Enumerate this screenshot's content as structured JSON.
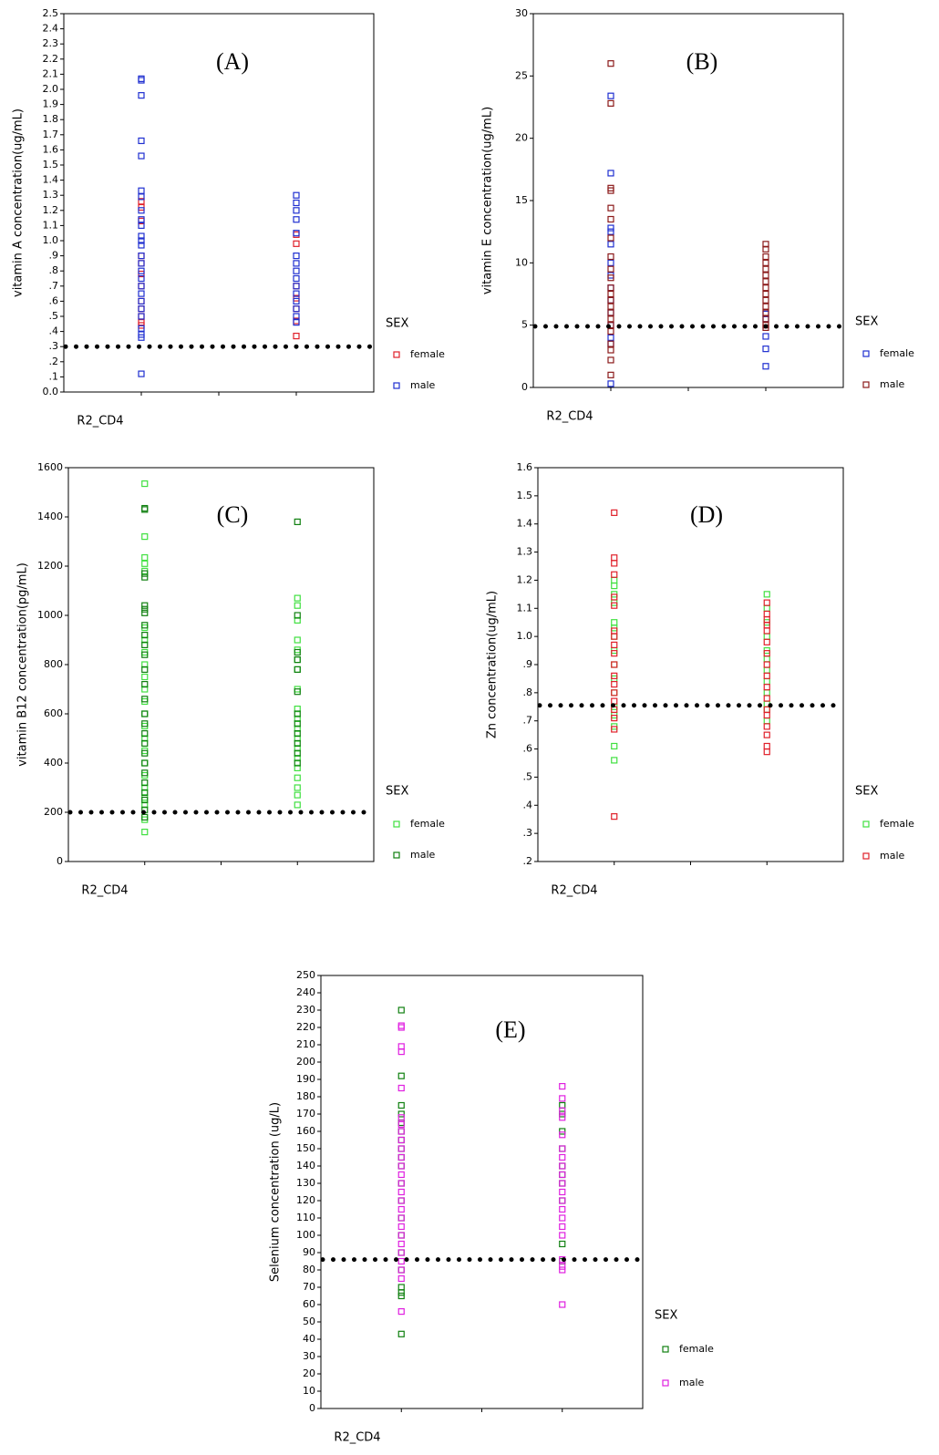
{
  "chart_data": [
    {
      "type": "scatter",
      "title": "(A)",
      "y_label": "vitamin A concentration(ug/mL)",
      "x_label": "R2_CD4",
      "legend_title": "SEX",
      "xlim": [
        0.5,
        2.5
      ],
      "xticks": [
        1,
        1.5,
        2
      ],
      "ylim": [
        0,
        2.5
      ],
      "yticks": [
        {
          "value": 0,
          "label": "0.0"
        },
        {
          "value": 0.1,
          "label": ".1"
        },
        {
          "value": 0.2,
          "label": ".2"
        },
        {
          "value": 0.3,
          "label": ".3"
        },
        {
          "value": 0.4,
          "label": ".4"
        },
        {
          "value": 0.5,
          "label": ".5"
        },
        {
          "value": 0.6,
          "label": ".6"
        },
        {
          "value": 0.7,
          "label": ".7"
        },
        {
          "value": 0.8,
          "label": ".8"
        },
        {
          "value": 0.9,
          "label": ".9"
        },
        {
          "value": 1,
          "label": "1.0"
        },
        1.1,
        1.2,
        1.3,
        1.4,
        1.5,
        1.6,
        1.7,
        1.8,
        1.9,
        {
          "value": 2,
          "label": "2.0"
        },
        2.1,
        2.2,
        2.3,
        2.4,
        2.5
      ],
      "reference_line": 0.3,
      "series": [
        {
          "name": "female",
          "color": "#e0202a",
          "x": [
            1,
            1,
            1,
            1,
            1,
            1,
            1,
            1,
            1,
            1,
            1,
            1,
            2,
            2,
            2,
            2,
            2,
            2,
            2
          ],
          "values": [
            1.26,
            1.22,
            1.13,
            0.9,
            0.85,
            0.78,
            0.7,
            0.6,
            0.55,
            0.5,
            0.46,
            0.44,
            1.04,
            0.98,
            0.7,
            0.62,
            0.55,
            0.47,
            0.37
          ]
        },
        {
          "name": "male",
          "color": "#1f2fd0",
          "x": [
            1,
            1,
            1,
            1,
            1,
            1,
            1,
            1,
            1,
            1,
            1,
            1,
            1,
            1,
            1,
            1,
            1,
            1,
            1,
            1,
            1,
            1,
            1,
            1,
            1,
            1,
            2,
            2,
            2,
            2,
            2,
            2,
            2,
            2,
            2,
            2,
            2,
            2,
            2,
            2,
            2
          ],
          "values": [
            2.07,
            2.06,
            1.96,
            1.66,
            1.56,
            1.33,
            1.29,
            1.2,
            1.14,
            1.1,
            1.03,
            1.0,
            0.97,
            0.9,
            0.85,
            0.8,
            0.75,
            0.7,
            0.65,
            0.6,
            0.55,
            0.5,
            0.42,
            0.38,
            0.36,
            0.12,
            1.3,
            1.25,
            1.2,
            1.14,
            1.05,
            0.9,
            0.85,
            0.8,
            0.75,
            0.7,
            0.65,
            0.6,
            0.55,
            0.5,
            0.46
          ]
        }
      ]
    },
    {
      "type": "scatter",
      "title": "(B)",
      "y_label": "vitamin E concentration(ug/mL)",
      "x_label": "R2_CD4",
      "legend_title": "SEX",
      "xlim": [
        0.5,
        2.5
      ],
      "xticks": [
        1,
        1.5,
        2
      ],
      "ylim": [
        0,
        30
      ],
      "yticks": [
        0,
        5,
        10,
        15,
        20,
        25,
        30
      ],
      "reference_line": 4.9,
      "series": [
        {
          "name": "female",
          "color": "#1f2fd0",
          "x": [
            1,
            1,
            1,
            1,
            1,
            1,
            1,
            1,
            1,
            1,
            1,
            1,
            1,
            1,
            2,
            2,
            2,
            2,
            2
          ],
          "values": [
            23.4,
            17.2,
            12.8,
            12.5,
            11.5,
            10,
            9,
            8,
            7,
            6,
            5,
            4,
            3.5,
            0.3,
            5.9,
            5.5,
            4.1,
            3.1,
            1.7
          ]
        },
        {
          "name": "male",
          "color": "#8b1a1a",
          "x": [
            1,
            1,
            1,
            1,
            1,
            1,
            1,
            1,
            1,
            1,
            1,
            1,
            1,
            1,
            1,
            1,
            1,
            1,
            1,
            1,
            1,
            1,
            2,
            2,
            2,
            2,
            2,
            2,
            2,
            2,
            2,
            2,
            2,
            2,
            2,
            2,
            2
          ],
          "values": [
            26,
            22.8,
            16,
            15.8,
            14.4,
            13.5,
            12,
            10.5,
            9.5,
            8.8,
            8,
            7.5,
            7,
            6.5,
            6,
            5.5,
            5,
            4.5,
            3.5,
            3,
            2.2,
            1,
            11.5,
            11.1,
            10.5,
            10,
            9.5,
            9,
            8.5,
            8,
            7.5,
            7,
            6.5,
            6,
            5.5,
            5,
            4.8
          ]
        }
      ]
    },
    {
      "type": "scatter",
      "title": "(C)",
      "y_label": "vitamin B12 concentration(pg/mL)",
      "x_label": "R2_CD4",
      "legend_title": "SEX",
      "xlim": [
        0.5,
        2.5
      ],
      "xticks": [
        1,
        1.5,
        2
      ],
      "ylim": [
        0,
        1600
      ],
      "yticks": [
        0,
        200,
        400,
        600,
        800,
        1000,
        1200,
        1400,
        1600
      ],
      "reference_line": 200,
      "series": [
        {
          "name": "female",
          "color": "#40e040",
          "x": [
            1,
            1,
            1,
            1,
            1,
            1,
            1,
            1,
            1,
            1,
            1,
            1,
            1,
            1,
            1,
            1,
            1,
            1,
            1,
            1,
            1,
            1,
            1,
            2,
            2,
            2,
            2,
            2,
            2,
            2,
            2,
            2,
            2,
            2,
            2,
            2,
            2,
            2,
            2,
            2,
            2,
            2
          ],
          "values": [
            1535,
            1320,
            1235,
            1210,
            1180,
            950,
            900,
            850,
            800,
            750,
            700,
            650,
            600,
            550,
            500,
            450,
            400,
            350,
            300,
            260,
            230,
            170,
            120,
            1070,
            1040,
            980,
            900,
            860,
            820,
            780,
            700,
            620,
            580,
            540,
            500,
            460,
            420,
            380,
            340,
            300,
            270,
            230
          ]
        },
        {
          "name": "male",
          "color": "#108010",
          "x": [
            1,
            1,
            1,
            1,
            1,
            1,
            1,
            1,
            1,
            1,
            1,
            1,
            1,
            1,
            1,
            1,
            1,
            1,
            1,
            1,
            1,
            1,
            1,
            1,
            1,
            1,
            2,
            2,
            2,
            2,
            2,
            2,
            2,
            2,
            2,
            2,
            2,
            2
          ],
          "values": [
            1435,
            1430,
            1170,
            1155,
            1040,
            1025,
            1010,
            960,
            920,
            880,
            840,
            780,
            720,
            660,
            600,
            560,
            520,
            480,
            440,
            400,
            360,
            320,
            280,
            250,
            210,
            180,
            1380,
            1000,
            850,
            820,
            780,
            690,
            600,
            560,
            520,
            480,
            440,
            400
          ]
        }
      ]
    },
    {
      "type": "scatter",
      "title": "(D)",
      "y_label": "Zn concentration(ug/mL)",
      "x_label": "R2_CD4",
      "legend_title": "SEX",
      "xlim": [
        0.5,
        2.5
      ],
      "xticks": [
        1,
        1.5,
        2
      ],
      "ylim": [
        0.2,
        1.6
      ],
      "yticks": [
        {
          "value": 0.2,
          "label": ".2"
        },
        {
          "value": 0.3,
          "label": ".3"
        },
        {
          "value": 0.4,
          "label": ".4"
        },
        {
          "value": 0.5,
          "label": ".5"
        },
        {
          "value": 0.6,
          "label": ".6"
        },
        {
          "value": 0.7,
          "label": ".7"
        },
        {
          "value": 0.8,
          "label": ".8"
        },
        {
          "value": 0.9,
          "label": ".9"
        },
        {
          "value": 1,
          "label": "1.0"
        },
        1.1,
        1.2,
        1.3,
        1.4,
        1.5,
        1.6
      ],
      "reference_line": 0.755,
      "series": [
        {
          "name": "female",
          "color": "#40e040",
          "x": [
            1,
            1,
            1,
            1,
            1,
            1,
            1,
            1,
            1,
            1,
            1,
            1,
            1,
            1,
            1,
            1,
            2,
            2,
            2,
            2,
            2,
            2,
            2,
            2,
            2,
            2,
            2,
            2
          ],
          "values": [
            1.2,
            1.18,
            1.15,
            1.12,
            1.05,
            1.03,
            1.0,
            0.95,
            0.9,
            0.85,
            0.8,
            0.75,
            0.72,
            0.68,
            0.61,
            0.56,
            1.15,
            1.1,
            1.05,
            1.0,
            0.95,
            0.92,
            0.88,
            0.84,
            0.8,
            0.76,
            0.74,
            0.7
          ]
        },
        {
          "name": "male",
          "color": "#e0202a",
          "x": [
            1,
            1,
            1,
            1,
            1,
            1,
            1,
            1,
            1,
            1,
            1,
            1,
            1,
            1,
            1,
            1,
            1,
            1,
            1,
            2,
            2,
            2,
            2,
            2,
            2,
            2,
            2,
            2,
            2,
            2,
            2,
            2,
            2,
            2,
            2,
            2
          ],
          "values": [
            1.44,
            1.28,
            1.26,
            1.22,
            1.14,
            1.11,
            1.02,
            1.0,
            0.97,
            0.94,
            0.9,
            0.86,
            0.83,
            0.8,
            0.77,
            0.74,
            0.71,
            0.67,
            0.36,
            1.12,
            1.08,
            1.06,
            1.04,
            1.02,
            0.98,
            0.94,
            0.9,
            0.86,
            0.82,
            0.78,
            0.74,
            0.72,
            0.68,
            0.65,
            0.61,
            0.59
          ]
        }
      ]
    },
    {
      "type": "scatter",
      "title": "(E)",
      "y_label": "Selenium concentration (ug/L)",
      "x_label": "R2_CD4",
      "legend_title": "SEX",
      "xlim": [
        0.5,
        2.5
      ],
      "xticks": [
        1,
        1.5,
        2
      ],
      "ylim": [
        0,
        250
      ],
      "yticks": [
        0,
        10,
        20,
        30,
        40,
        50,
        60,
        70,
        80,
        90,
        100,
        110,
        120,
        130,
        140,
        150,
        160,
        170,
        180,
        190,
        200,
        210,
        220,
        230,
        240,
        250
      ],
      "reference_line": 86,
      "series": [
        {
          "name": "female",
          "color": "#108010",
          "x": [
            1,
            1,
            1,
            1,
            1,
            1,
            1,
            1,
            1,
            1,
            1,
            1,
            1,
            1,
            1,
            1,
            1,
            1,
            1,
            1,
            2,
            2,
            2,
            2,
            2,
            2,
            2,
            2,
            2,
            2
          ],
          "values": [
            230,
            192,
            175,
            170,
            165,
            160,
            155,
            150,
            145,
            140,
            130,
            120,
            110,
            100,
            90,
            80,
            70,
            67,
            65,
            43,
            175,
            170,
            160,
            150,
            140,
            135,
            130,
            120,
            95,
            85
          ]
        },
        {
          "name": "male",
          "color": "#e020e0",
          "x": [
            1,
            1,
            1,
            1,
            1,
            1,
            1,
            1,
            1,
            1,
            1,
            1,
            1,
            1,
            1,
            1,
            1,
            1,
            1,
            1,
            1,
            1,
            1,
            1,
            1,
            1,
            2,
            2,
            2,
            2,
            2,
            2,
            2,
            2,
            2,
            2,
            2,
            2,
            2,
            2,
            2,
            2,
            2,
            2,
            2,
            2
          ],
          "values": [
            221,
            220,
            209,
            206,
            185,
            168,
            164,
            160,
            155,
            150,
            145,
            140,
            135,
            130,
            125,
            120,
            115,
            110,
            105,
            100,
            95,
            90,
            85,
            80,
            75,
            56,
            186,
            179,
            172,
            168,
            158,
            150,
            145,
            140,
            135,
            130,
            125,
            120,
            115,
            110,
            105,
            100,
            86,
            82,
            80,
            60
          ]
        }
      ]
    }
  ]
}
